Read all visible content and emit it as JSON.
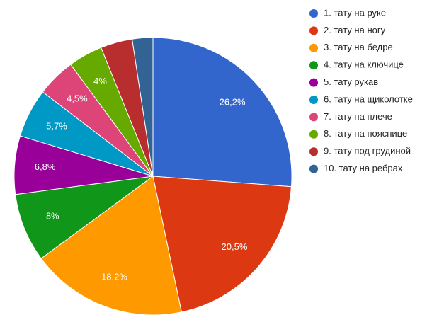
{
  "chart_data": {
    "type": "pie",
    "categories": [
      "1. тату на руке",
      "2. тату на ногу",
      "3. тату на бедре",
      "4. тату на ключице",
      "5. тату рукав",
      "6. тату на щиколотке",
      "7. тату на плече",
      "8. тату на пояснице",
      "9. тату под грудиной",
      "10. тату на ребрах"
    ],
    "values": [
      26.2,
      20.5,
      18.2,
      8,
      6.8,
      5.7,
      4.5,
      4,
      3.7,
      2.4
    ],
    "value_labels": [
      "26,2%",
      "20,5%",
      "18,2%",
      "8%",
      "6,8%",
      "5,7%",
      "4,5%",
      "4%",
      null,
      null
    ],
    "colors": [
      "#3366cc",
      "#dc3912",
      "#ff9900",
      "#109618",
      "#990099",
      "#0099c6",
      "#dd4477",
      "#66aa00",
      "#b82e2e",
      "#316395"
    ],
    "legend": "right"
  }
}
